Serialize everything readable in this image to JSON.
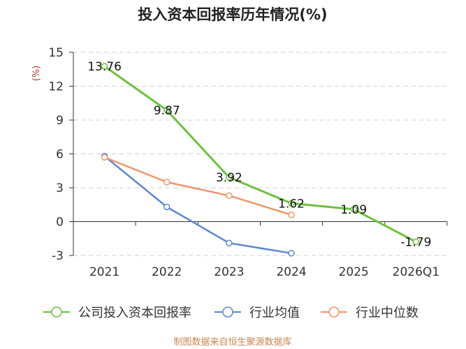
{
  "chart_data": {
    "type": "line",
    "title": "投入资本回报率历年情况(%)",
    "xlabel": "",
    "ylabel": "(%)",
    "categories": [
      "2021",
      "2022",
      "2023",
      "2024",
      "2025",
      "2026Q1"
    ],
    "ylim": [
      -3,
      15
    ],
    "yticks": [
      15,
      12,
      9,
      6,
      3,
      0,
      -3
    ],
    "grid": true,
    "legend": "bottom",
    "series": [
      {
        "name": "公司投入资本回报率",
        "color": "#6cc23b",
        "values": [
          13.76,
          9.87,
          3.92,
          1.62,
          1.09,
          -1.79
        ],
        "data_labels": true
      },
      {
        "name": "行业均值",
        "color": "#5b86d1",
        "values": [
          5.8,
          1.3,
          -1.9,
          -2.8,
          null,
          null
        ],
        "data_labels": false
      },
      {
        "name": "行业中位数",
        "color": "#f0956a",
        "values": [
          5.7,
          3.5,
          2.3,
          0.6,
          null,
          null
        ],
        "data_labels": false
      }
    ]
  },
  "footer": {
    "source": "制图数据来自恒生聚源数据库"
  }
}
